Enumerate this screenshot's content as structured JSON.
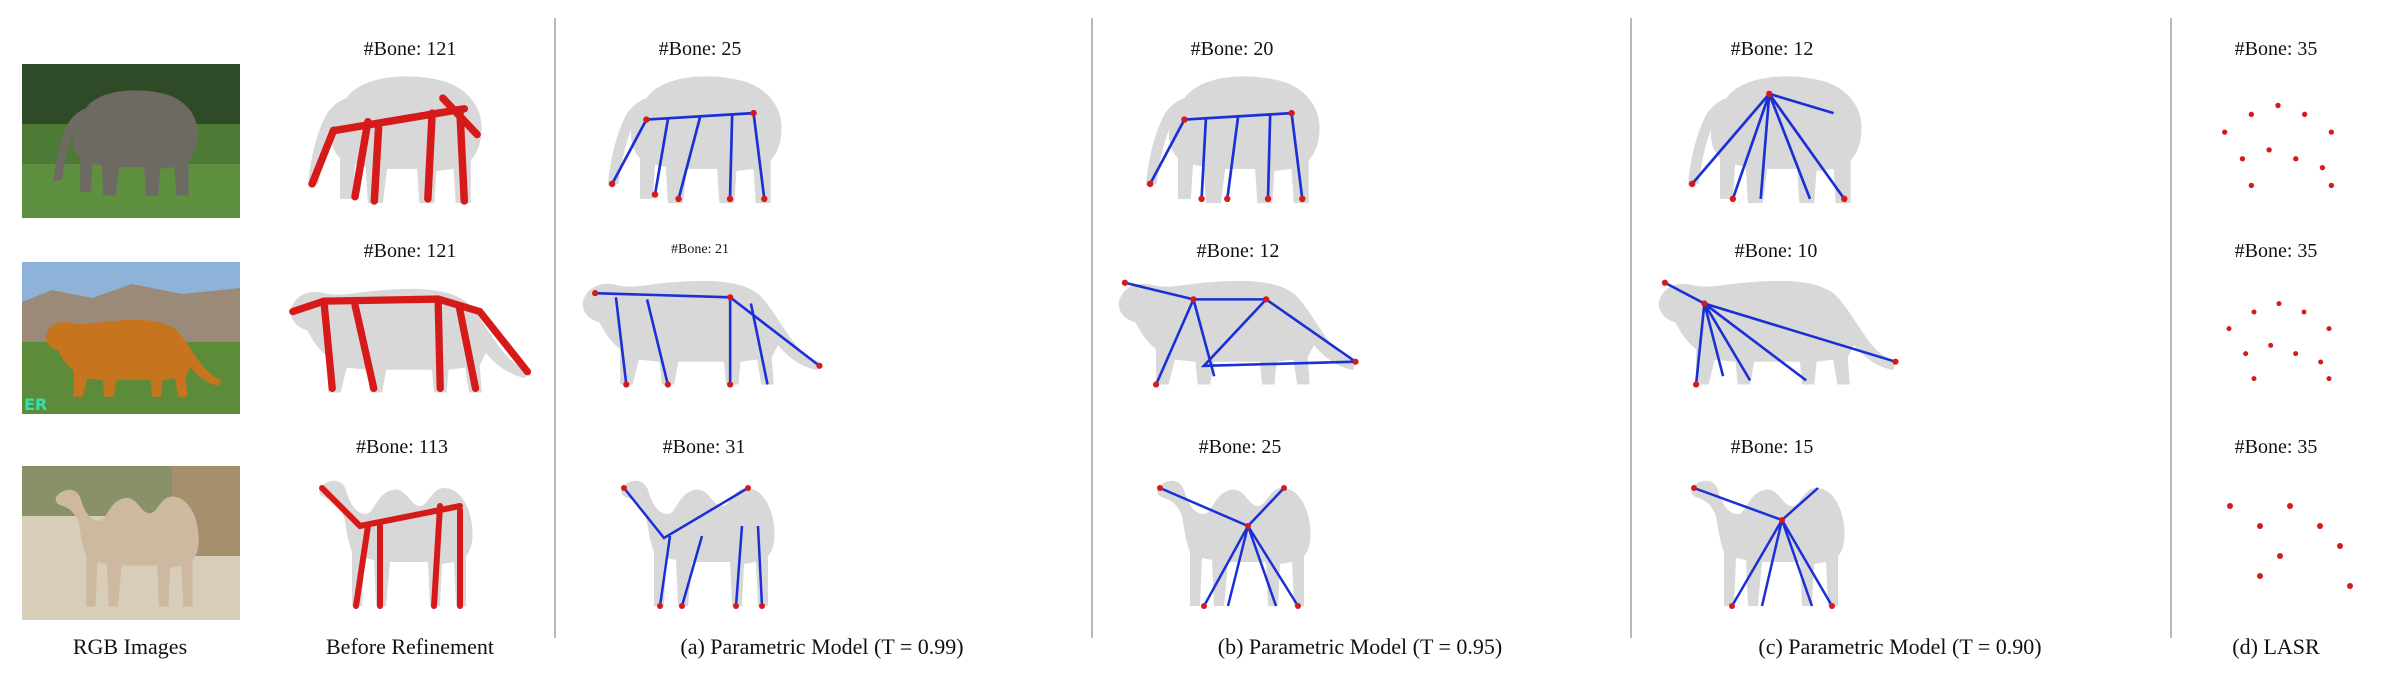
{
  "captions": {
    "rgb": "RGB Images",
    "before": "Before Refinement",
    "a": "(a) Parametric Model  (T = 0.99)",
    "b": "(b) Parametric Model  (T = 0.95)",
    "c": "(c) Parametric Model  (T = 0.90)",
    "d": "(d) LASR"
  },
  "bone_labels": {
    "before": [
      "#Bone: 121",
      "#Bone: 121",
      "#Bone: 113"
    ],
    "a": [
      "#Bone: 25",
      "#Bone: 21",
      "#Bone: 31"
    ],
    "b": [
      "#Bone: 20",
      "#Bone: 12",
      "#Bone: 25"
    ],
    "c": [
      "#Bone: 12",
      "#Bone: 10",
      "#Bone: 15"
    ],
    "d": [
      "#Bone: 35",
      "#Bone: 35",
      "#Bone: 35"
    ]
  },
  "photo_watermark": "ER",
  "colors": {
    "bone_blue": "#1a2fd6",
    "joint_red": "#d61a1a",
    "mesh_gray": "#d8d8d8",
    "separator": "#b8b8b8"
  },
  "icons": [
    "elephant-silhouette",
    "tiger-silhouette",
    "camel-silhouette"
  ]
}
